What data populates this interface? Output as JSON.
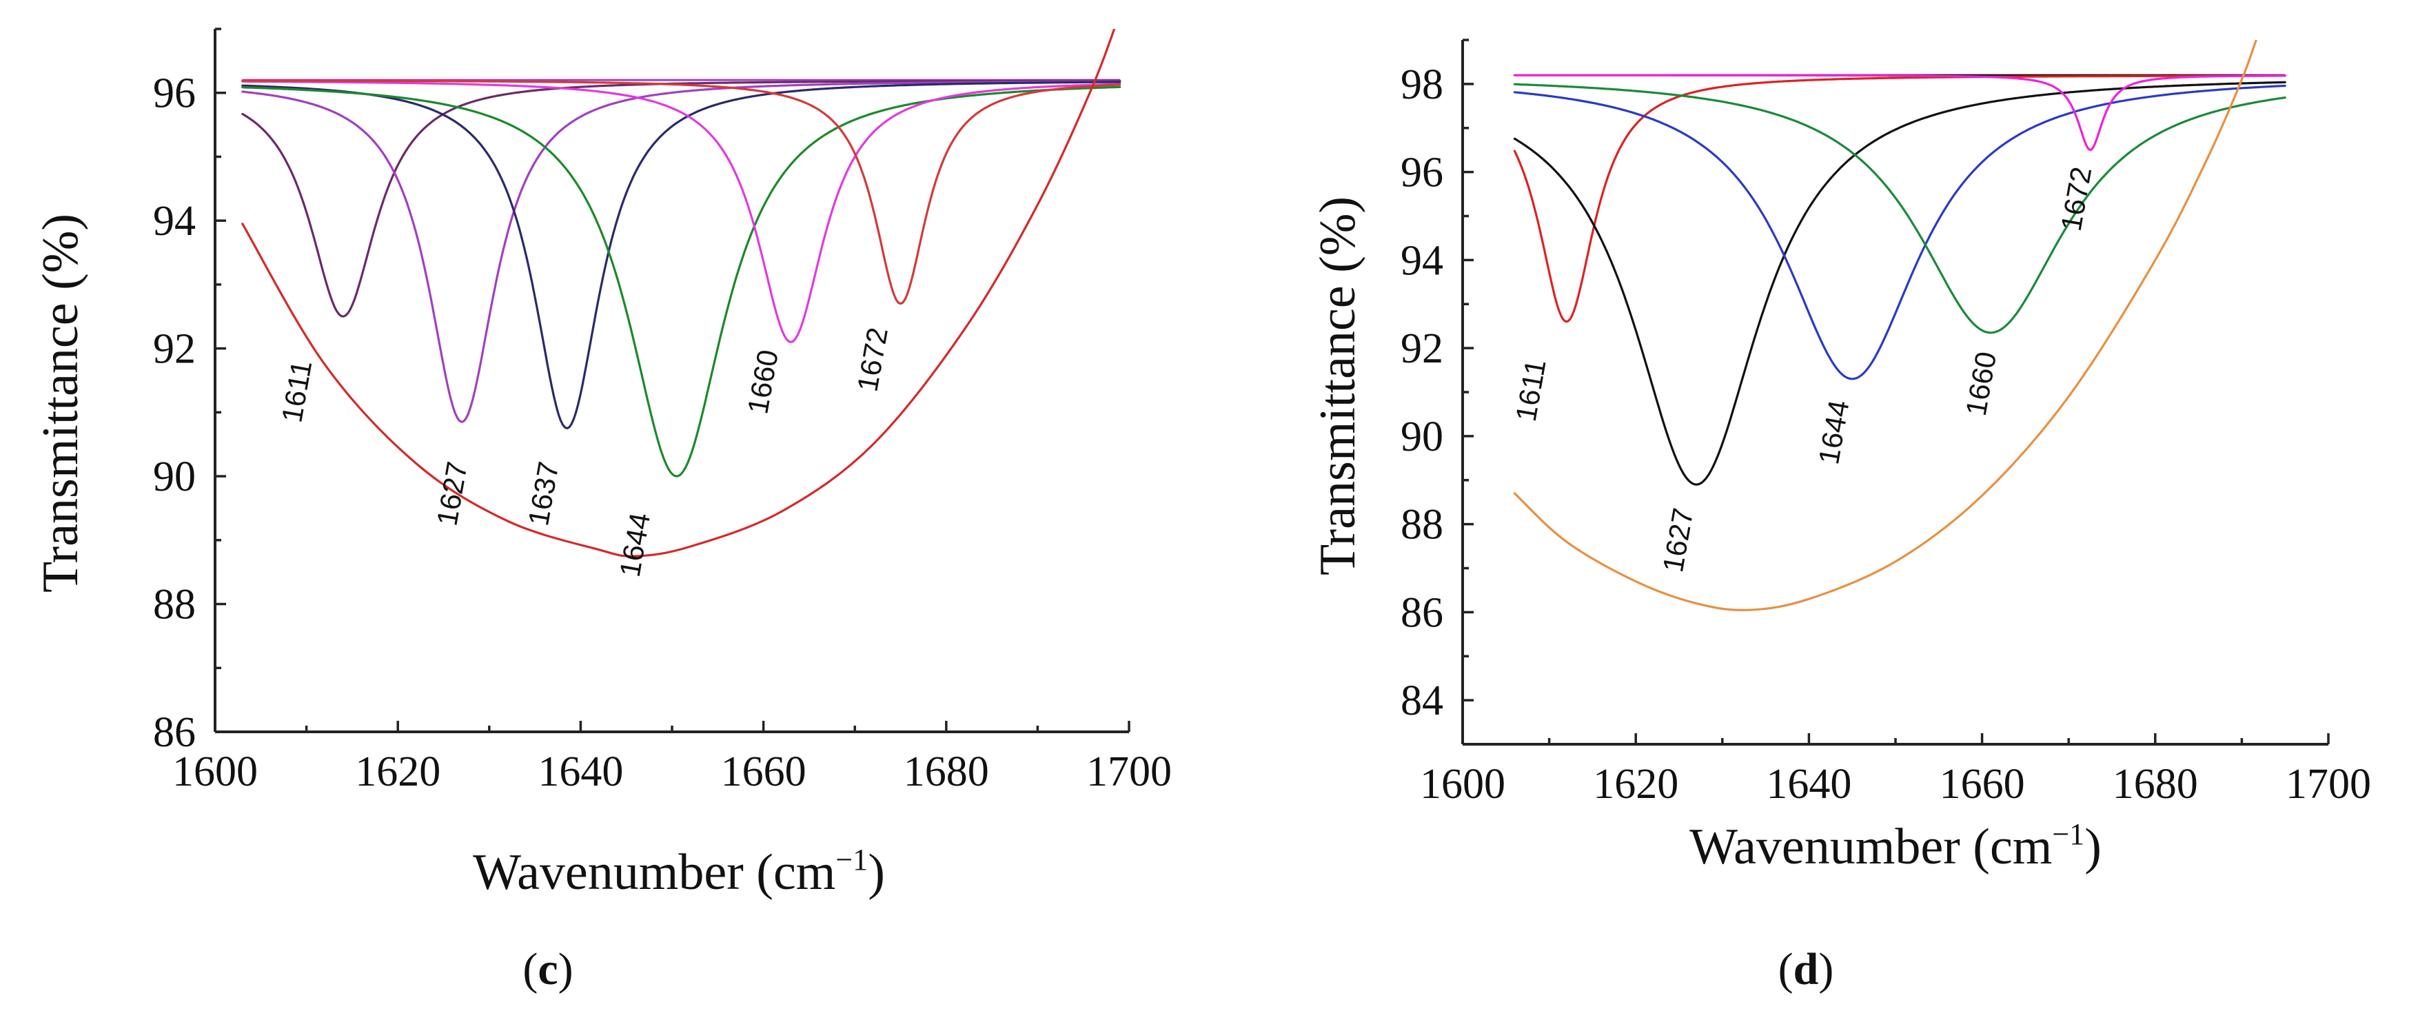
{
  "chart_data": [
    {
      "type": "line",
      "panel": "c",
      "xlabel": "Wavenumber (cm−1)",
      "xlabel_main": "Wavenumber (cm",
      "xlabel_sup": "−1",
      "xlabel_end": ")",
      "ylabel": "Transmittance (%)",
      "xlim": [
        1600,
        1700
      ],
      "ylim": [
        86,
        97
      ],
      "xticks": [
        "1600",
        "1620",
        "1640",
        "1660",
        "1680",
        "1700"
      ],
      "yticks": [
        "86",
        "88",
        "90",
        "92",
        "94",
        "96"
      ],
      "baseline": 96.2,
      "x_start": 1603,
      "x_end": 1699,
      "series": [
        {
          "name": "1611",
          "color": "#6a2a6a",
          "center": 1614,
          "min": 92.5,
          "hwhm": 4.5
        },
        {
          "name": "1627",
          "color": "#a040c0",
          "center": 1627,
          "min": 90.85,
          "hwhm": 4.5
        },
        {
          "name": "1637",
          "color": "#2a2a6a",
          "center": 1638.5,
          "min": 90.75,
          "hwhm": 4.5
        },
        {
          "name": "1644",
          "color": "#1a8a2a",
          "center": 1650.5,
          "min": 90.0,
          "hwhm": 6.5
        },
        {
          "name": "1660",
          "color": "#e23adf",
          "center": 1663,
          "min": 92.1,
          "hwhm": 4.5
        },
        {
          "name": "1672",
          "color": "#d23a3a",
          "center": 1675,
          "min": 92.7,
          "hwhm": 3.5
        }
      ],
      "envelope": {
        "name": "fit",
        "color": "#d42a2a",
        "x": [
          1603,
          1612,
          1622,
          1632,
          1642,
          1646,
          1652,
          1662,
          1672,
          1682,
          1690,
          1696,
          1699
        ],
        "y": [
          93.95,
          91.75,
          90.2,
          89.3,
          88.85,
          88.75,
          88.9,
          89.45,
          90.5,
          92.3,
          94.25,
          96.1,
          97.25
        ]
      },
      "peak_labels": [
        {
          "text": "1611",
          "x": 1610,
          "y": 91.3
        },
        {
          "text": "1627",
          "x": 1627,
          "y": 89.7
        },
        {
          "text": "1637",
          "x": 1637,
          "y": 89.7
        },
        {
          "text": "1644",
          "x": 1647,
          "y": 88.9
        },
        {
          "text": "1660",
          "x": 1661,
          "y": 91.45
        },
        {
          "text": "1672",
          "x": 1673,
          "y": 91.8
        }
      ]
    },
    {
      "type": "line",
      "panel": "d",
      "xlabel": "Wavenumber (cm−1)",
      "xlabel_main": "Wavenumber (cm",
      "xlabel_sup": "−1",
      "xlabel_end": ")",
      "ylabel": "Transmittance (%)",
      "xlim": [
        1600,
        1700
      ],
      "ylim": [
        83,
        99
      ],
      "xticks": [
        "1600",
        "1620",
        "1640",
        "1660",
        "1680",
        "1700"
      ],
      "yticks": [
        "84",
        "86",
        "88",
        "90",
        "92",
        "94",
        "96",
        "98"
      ],
      "baseline": 98.2,
      "x_start": 1606,
      "x_end": 1695,
      "series": [
        {
          "name": "1611",
          "color": "#dd2222",
          "center": 1612,
          "min": 92.6,
          "hwhm": 4.0
        },
        {
          "name": "1627",
          "color": "#111111",
          "center": 1627,
          "min": 88.9,
          "hwhm": 9.0
        },
        {
          "name": "1644",
          "color": "#2a3ac8",
          "center": 1645,
          "min": 91.3,
          "hwhm": 9.5
        },
        {
          "name": "1660",
          "color": "#1a8a3a",
          "center": 1661,
          "min": 92.35,
          "hwhm": 10.5
        },
        {
          "name": "1672",
          "color": "#ee22dd",
          "center": 1672.5,
          "min": 96.5,
          "hwhm": 1.8
        }
      ],
      "envelope": {
        "name": "fit",
        "color": "#e89040",
        "x": [
          1606,
          1612,
          1620,
          1627,
          1633,
          1640,
          1650,
          1660,
          1670,
          1680,
          1686,
          1690,
          1692
        ],
        "y": [
          88.7,
          87.6,
          86.7,
          86.2,
          86.05,
          86.3,
          87.15,
          88.65,
          90.9,
          94.0,
          96.3,
          98.1,
          99.2
        ]
      },
      "peak_labels": [
        {
          "text": "1611",
          "x": 1609,
          "y": 91.0
        },
        {
          "text": "1627",
          "x": 1626,
          "y": 87.6
        },
        {
          "text": "1644",
          "x": 1644,
          "y": 90.05
        },
        {
          "text": "1660",
          "x": 1661,
          "y": 91.15
        },
        {
          "text": "1672",
          "x": 1672,
          "y": 95.35
        }
      ]
    }
  ],
  "panel_labels": {
    "c_open": "(",
    "c_letter": "c",
    "c_close": ")",
    "d_open": "(",
    "d_letter": "d",
    "d_close": ")"
  }
}
